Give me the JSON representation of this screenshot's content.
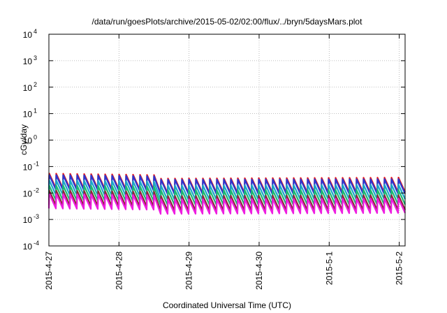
{
  "chart_data": {
    "type": "line",
    "title": "/data/run/goesPlots/archive/2015-05-02/02:00/flux/../bryn/5daysMars.plot",
    "xlabel": "Coordinated Universal Time (UTC)",
    "ylabel": "cGy/day",
    "y_scale": "log",
    "ylim": [
      0.0001,
      10000
    ],
    "xlim": [
      "2015-04-27T00:00",
      "2015-05-02T02:00"
    ],
    "grid": true,
    "legend": "none",
    "y_ticks": [
      {
        "base": "10",
        "exp": "-4"
      },
      {
        "base": "10",
        "exp": "-3"
      },
      {
        "base": "10",
        "exp": "-2"
      },
      {
        "base": "10",
        "exp": "-1"
      },
      {
        "base": "10",
        "exp": "0"
      },
      {
        "base": "10",
        "exp": "1"
      },
      {
        "base": "10",
        "exp": "2"
      },
      {
        "base": "10",
        "exp": "3"
      },
      {
        "base": "10",
        "exp": "4"
      }
    ],
    "x_ticks": [
      "2015-4-27",
      "2015-4-28",
      "2015-4-29",
      "2015-4-30",
      "2015-5-1",
      "2015-5-2"
    ],
    "pattern": {
      "shape": "sawtooth",
      "cycles": 51,
      "peak_ratio_to_mean": 1.6,
      "trough_ratio_to_mean": 0.45,
      "note": "series mean levels (cGy/day) by date"
    },
    "series": [
      {
        "color": "#e8171b",
        "levels": [
          {
            "x": "2015-04-27T00:00",
            "y": 0.034
          },
          {
            "x": "2015-04-28T12:00",
            "y": 0.03
          },
          {
            "x": "2015-04-28T14:00",
            "y": 0.022
          },
          {
            "x": "2015-05-02T02:00",
            "y": 0.024
          }
        ]
      },
      {
        "color": "#2a36cf",
        "levels": [
          {
            "x": "2015-04-27T00:00",
            "y": 0.03
          },
          {
            "x": "2015-04-28T12:00",
            "y": 0.027
          },
          {
            "x": "2015-04-28T14:00",
            "y": 0.02
          },
          {
            "x": "2015-05-02T02:00",
            "y": 0.021
          }
        ]
      },
      {
        "color": "#1aa8c8",
        "levels": [
          {
            "x": "2015-04-27T00:00",
            "y": 0.019
          },
          {
            "x": "2015-04-28T12:00",
            "y": 0.017
          },
          {
            "x": "2015-04-28T14:00",
            "y": 0.012
          },
          {
            "x": "2015-05-02T02:00",
            "y": 0.013
          }
        ]
      },
      {
        "color": "#1db870",
        "levels": [
          {
            "x": "2015-04-27T00:00",
            "y": 0.012
          },
          {
            "x": "2015-04-28T12:00",
            "y": 0.011
          },
          {
            "x": "2015-04-28T14:00",
            "y": 0.0078
          },
          {
            "x": "2015-05-02T02:00",
            "y": 0.0082
          }
        ]
      },
      {
        "color": "#8a2a3a",
        "levels": [
          {
            "x": "2015-04-27T00:00",
            "y": 0.0078
          },
          {
            "x": "2015-04-28T12:00",
            "y": 0.007
          },
          {
            "x": "2015-04-28T14:00",
            "y": 0.0048
          },
          {
            "x": "2015-05-02T02:00",
            "y": 0.0052
          }
        ]
      },
      {
        "color": "#ee1ee0",
        "levels": [
          {
            "x": "2015-04-27T00:00",
            "y": 0.0058
          },
          {
            "x": "2015-04-28T12:00",
            "y": 0.0052
          },
          {
            "x": "2015-04-28T14:00",
            "y": 0.0036
          },
          {
            "x": "2015-05-02T02:00",
            "y": 0.0039
          }
        ]
      }
    ]
  }
}
